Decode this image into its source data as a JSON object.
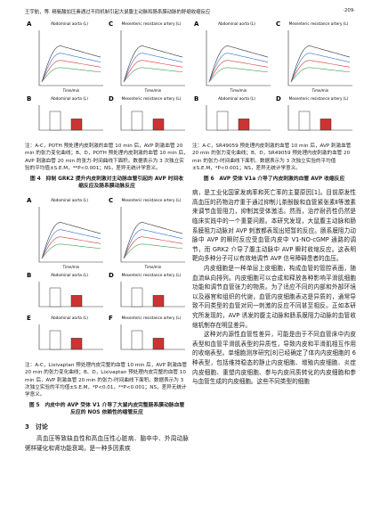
{
  "header": {
    "running_title": "王宇航，等. 精氨酸加压素通过不同机制引起大鼠腹主动脉和肠系膜动脉的舒缩收缩反应",
    "page": "·209·"
  },
  "figures": [
    {
      "panels": [
        {
          "label": "A",
          "title": "Abdominal aorta (L)",
          "kind": "line",
          "xlabel": "Time/min"
        },
        {
          "label": "C",
          "title": "Mesenteric resistance artery (L)",
          "kind": "line",
          "xlabel": "Time/min"
        },
        {
          "label": "B",
          "title": "Abdominal aorta (L)",
          "kind": "bar"
        },
        {
          "label": "D",
          "title": "Mesenteric resistance artery (L)",
          "kind": "bar"
        }
      ],
      "note": "注：A-C，POTH 预处理内皮刺激的血管 10 min 后，AVP 刺激血管 20 min 的张力变化曲线；B、D，POTH 预处理内皮刺激的血管 10 min 后，AVP 刺激血管 20 min 的张力-时间曲线下面积。数据表示为 3 次独立实验的平均值±S.E.M，**P<0.001；NS，差异无统计学意义。",
      "caption": "图 4　抑制 GRK2 提升内皮刺激对主动脉血管引起的 AVP 时间收缩反应及肠系膜动脉反应"
    },
    {
      "panels": [
        {
          "label": "A",
          "title": "Abdominal aorta (L)",
          "kind": "line",
          "xlabel": "Time/min"
        },
        {
          "label": "C",
          "title": "Mesenteric resistance artery (L)",
          "kind": "line",
          "xlabel": "Time/min"
        },
        {
          "label": "B",
          "title": "Abdominal aorta (L)",
          "kind": "bar"
        },
        {
          "label": "D",
          "title": "Mesenteric resistance artery (L)",
          "kind": "bar"
        },
        {
          "label": "E",
          "title": "Abdominal aorta (L)",
          "kind": "bar"
        },
        {
          "label": "F",
          "title": "Mesenteric resistance artery (L)",
          "kind": "bar"
        }
      ],
      "note": "注：A-C，Lixivaptan 预处理内皮完整的血管 10 min 后，AVP 刺激血管 20 min 的张力变化曲线；B、D，Lixivaptan 预处理内皮完整的血管 10 min 后，AVP 刺激血管 20 min 的张力-时间曲线下面积。数据表示为 3 次独立实验的平均值±S.E.M，*P<0.01，**P<0.001；NS，差异无统计学意义。",
      "caption": "图 5　内皮中的 AVP 受体 V1 介导了大鼠内皮完整肠系膜动脉血管反应的 NOS 依赖性的缩管反应"
    },
    {
      "panels": [
        {
          "label": "A",
          "title": "Abdominal aorta (L)",
          "kind": "line",
          "xlabel": "Time/min"
        },
        {
          "label": "C",
          "title": "Mesenteric resistance artery (L)",
          "kind": "line",
          "xlabel": "Time/min"
        },
        {
          "label": "B",
          "title": "Abdominal aorta (L)",
          "kind": "bar"
        },
        {
          "label": "D",
          "title": "Mesenteric resistance artery (L)",
          "kind": "bar"
        }
      ],
      "note": "注：A-C，SR49059 预处理内皮刺激的血管 10 min 后，AVP 刺激血管 20 min 的张力变化曲线；B、D，SR49059 预处理内皮刺激的血管 20 min 的张力-时间曲线下面积。数据表示为 3 次独立实验的平均值±S.E.M，*P<0.001；NS，差异无统计学意义。",
      "caption": "图 6　AVP 受体 V1a 介导了内皮刺激的血管 AVP 收缩反应"
    }
  ],
  "section": {
    "heading": "3　讨论",
    "paragraphs": [
      "高血压等致缺血性和高血压性心脏病、脑卒中、外周动脉粥样硬化和肾功能衰竭，是一种多因素疾",
      "病，是工业化国家发病率和死亡率的主要原因[1]。目前原发性高血压的药物治疗重于通过抑制儿茶酚胺和血管紧张素Ⅱ等激素来调节血管阻力，抑制其受体激活。然而，治疗耐药性仍然是临床实践中的一个重要问题。本研究发现，大鼠腹主动脉和肠系膜阻力动脉对 AVP 刺激都表现出短暂的反应。肠系膜阻力动脉中 AVP 的瞬时反应受血管内皮中 V1-NO-cGMP 通路的调节，而 GRK2 介导了腹主动脉中 AVP 瞬时收缩反应。这表明靶向多种分子可以有效地调节 AVP 信号障碍患者的血压。",
      "内皮细胞是一种单层上皮细胞，构成血管的管腔表面，随血流纵向排列。内皮细胞可以合成和释放各种影响平滑肌细胞功能和调节血管张力的物质。为了适应不同的内部和外部环境以及器官和组织的代谢，血管内皮细胞表达是异质的，通常导致不同类型的血管对同一刺激的反应不同甚至相反。正如本研究所发现的，AVP 诱发的腹主动脉和肠系膜阻力动脉的血管收缩机制存在明显差异。",
      "这种对内源性血管性差异，可能是由于不同血管床中内皮表型和血管平滑肌表型的异质性，导致内皮和平滑肌相互作用的收缩表型。单细胞测序研究[8]已经确定了体内内皮细胞的 6 种表型，包括维持稳态的静止内皮细胞、增殖内皮细胞、炎症内皮细胞、重塑内皮细胞、参与内皮间质转化的内皮细胞和参与血管生成的内皮细胞。这些不同类型的细胞"
    ]
  }
}
